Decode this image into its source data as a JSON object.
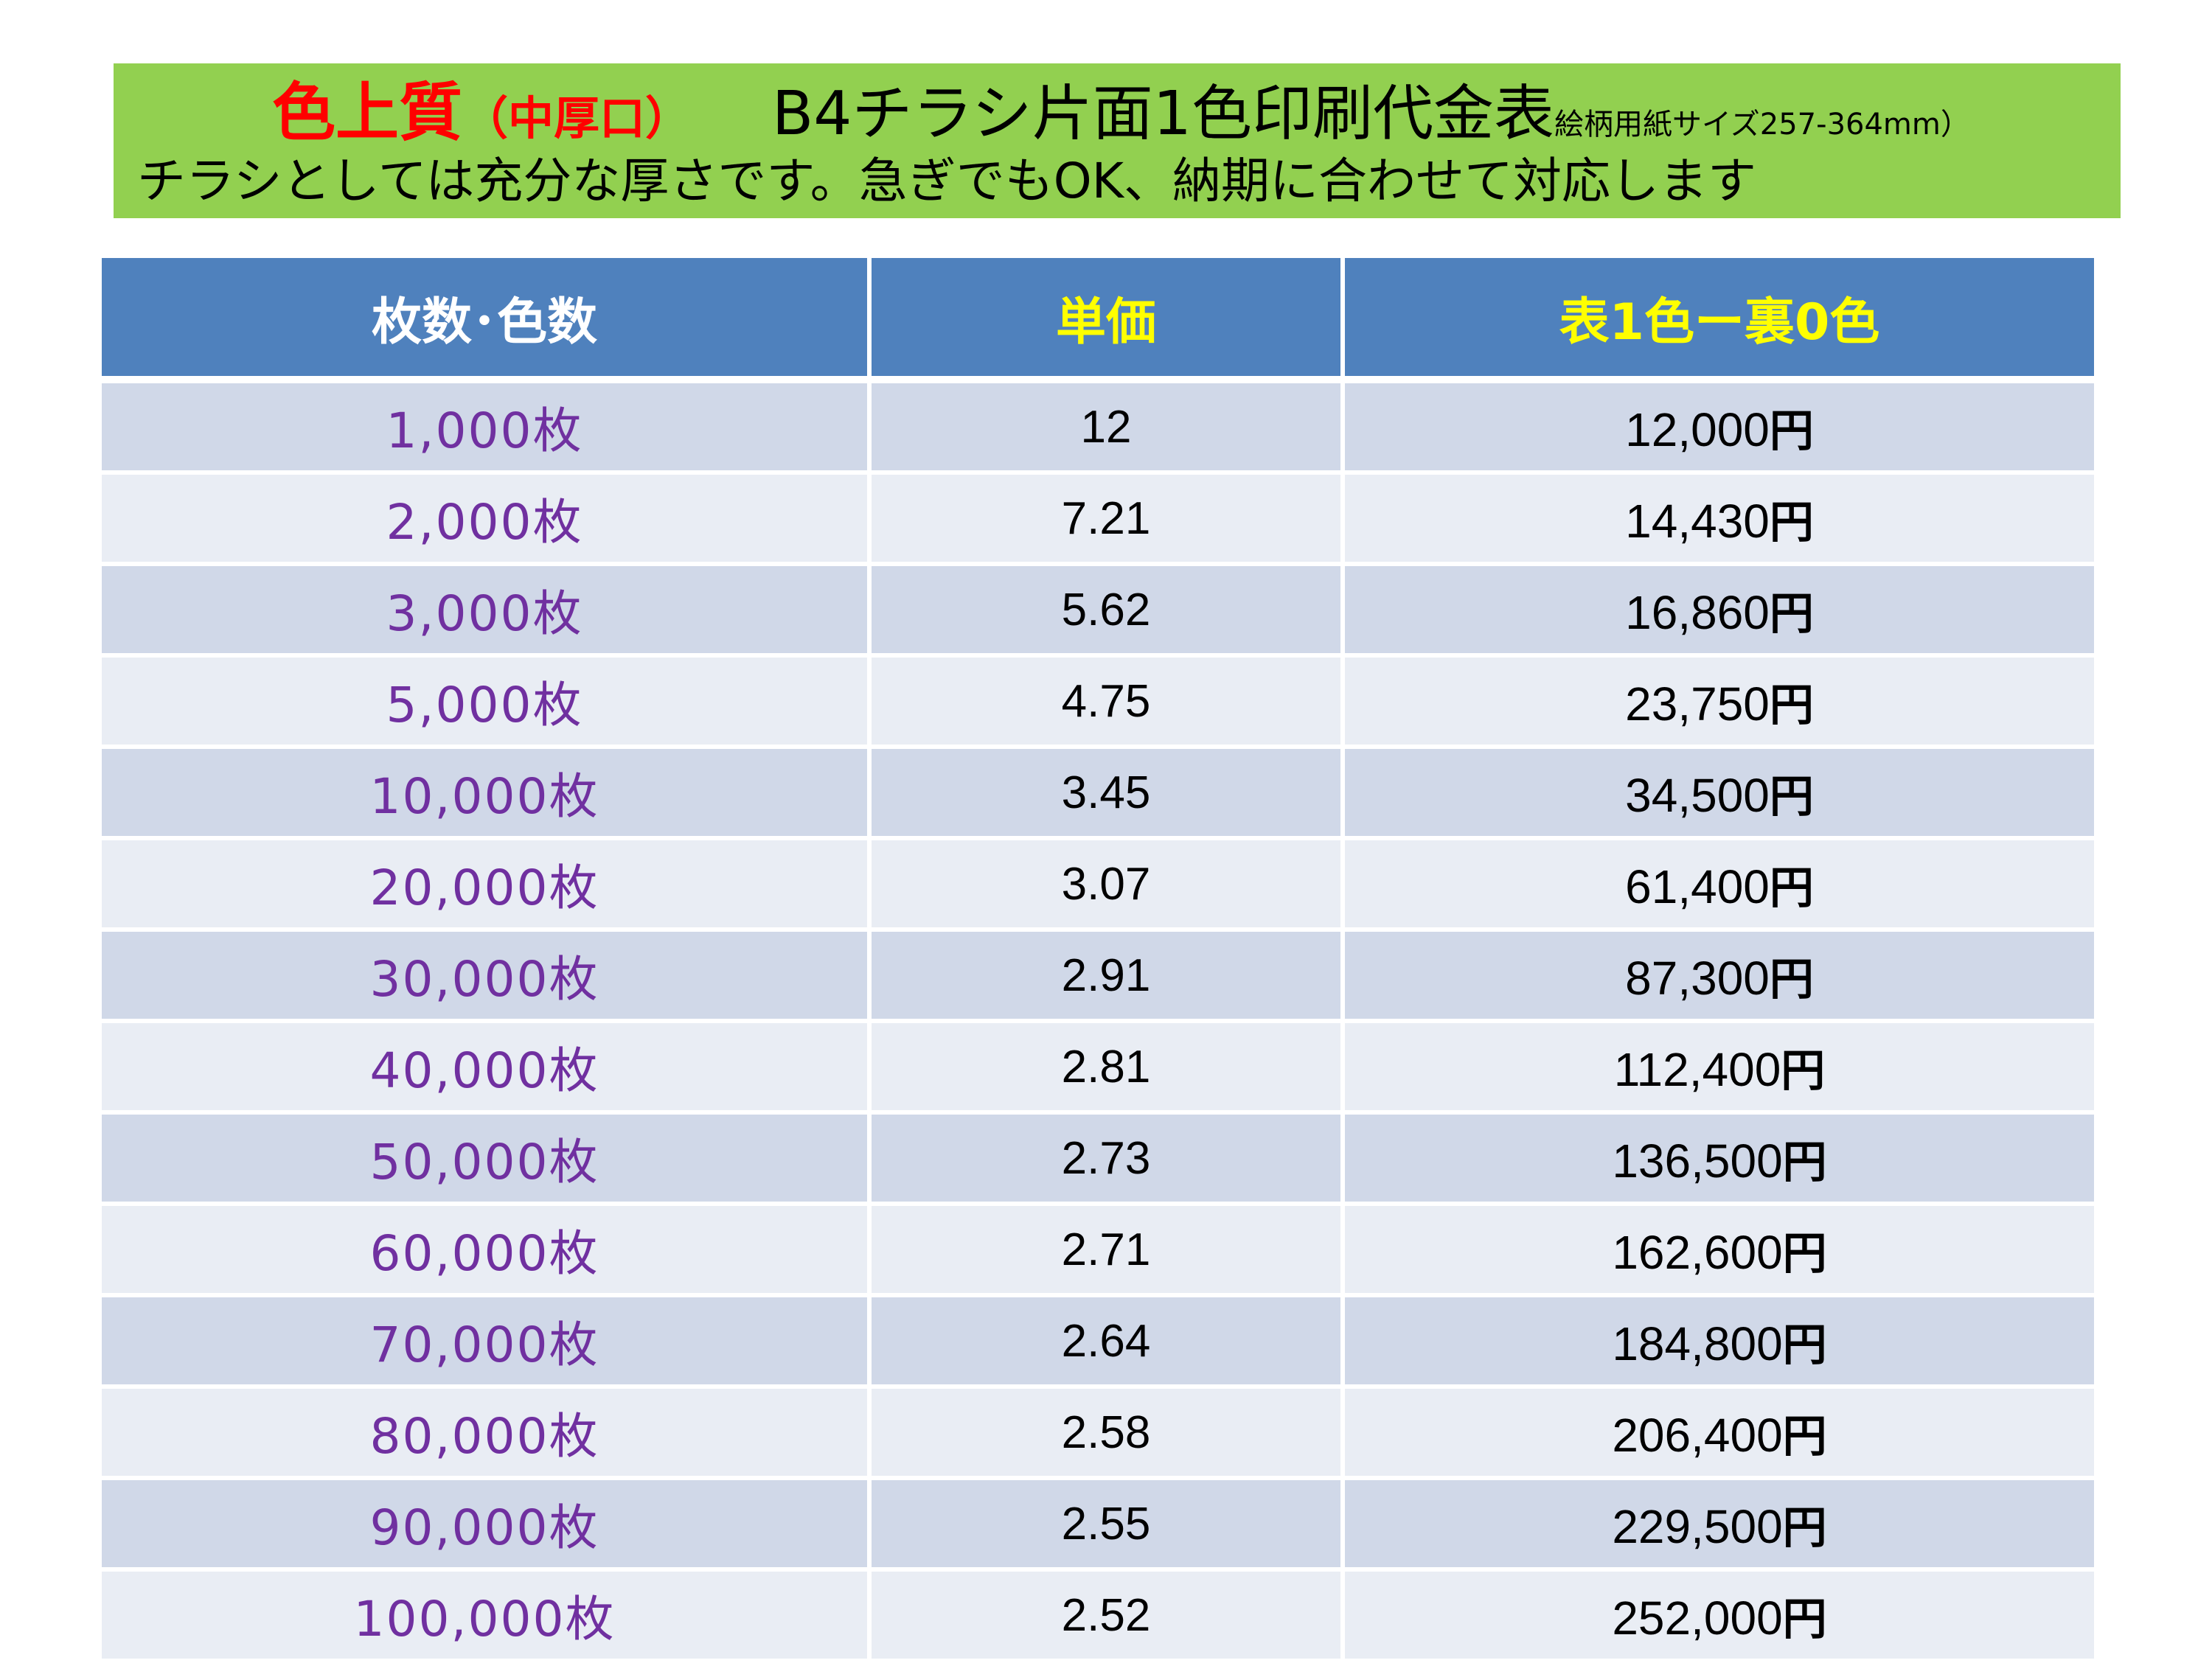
{
  "banner": {
    "title_red": "色上質",
    "title_paren": "（中厚口）",
    "title_main": "B4チラシ片面1色印刷代金表",
    "title_size": "絵柄用紙サイズ257-364mm）",
    "subtitle": "チラシとしては充分な厚さです。急ぎでもOK、納期に合わせて対応します"
  },
  "table": {
    "headers": [
      "枚数･色数",
      "単価",
      "表1色ー裏0色"
    ],
    "colors": {
      "header_bg": "#4f81bd",
      "row_odd": "#d0d8e8",
      "row_even": "#e9edf4",
      "qty_text": "#7030a0",
      "yellow_header": "#ffff00",
      "banner_bg": "#92d050"
    },
    "rows": [
      {
        "qty": "1,000枚",
        "unit": "12",
        "total": "12,000",
        "yen": "円"
      },
      {
        "qty": "2,000枚",
        "unit": "7.21",
        "total": "14,430",
        "yen": "円"
      },
      {
        "qty": "3,000枚",
        "unit": "5.62",
        "total": "16,860",
        "yen": "円"
      },
      {
        "qty": "5,000枚",
        "unit": "4.75",
        "total": "23,750",
        "yen": "円"
      },
      {
        "qty": "10,000枚",
        "unit": "3.45",
        "total": "34,500",
        "yen": "円"
      },
      {
        "qty": "20,000枚",
        "unit": "3.07",
        "total": "61,400",
        "yen": "円"
      },
      {
        "qty": "30,000枚",
        "unit": "2.91",
        "total": "87,300",
        "yen": "円"
      },
      {
        "qty": "40,000枚",
        "unit": "2.81",
        "total": "112,400",
        "yen": "円"
      },
      {
        "qty": "50,000枚",
        "unit": "2.73",
        "total": "136,500",
        "yen": "円"
      },
      {
        "qty": "60,000枚",
        "unit": "2.71",
        "total": "162,600",
        "yen": "円"
      },
      {
        "qty": "70,000枚",
        "unit": "2.64",
        "total": "184,800",
        "yen": "円"
      },
      {
        "qty": "80,000枚",
        "unit": "2.58",
        "total": "206,400",
        "yen": "円"
      },
      {
        "qty": "90,000枚",
        "unit": "2.55",
        "total": "229,500",
        "yen": "円"
      },
      {
        "qty": "100,000枚",
        "unit": "2.52",
        "total": "252,000",
        "yen": "円"
      }
    ]
  }
}
